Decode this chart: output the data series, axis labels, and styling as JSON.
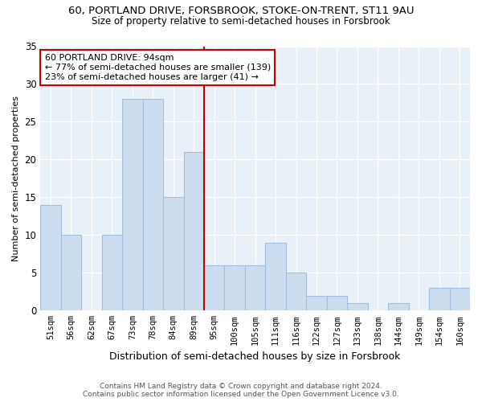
{
  "title": "60, PORTLAND DRIVE, FORSBROOK, STOKE-ON-TRENT, ST11 9AU",
  "subtitle": "Size of property relative to semi-detached houses in Forsbrook",
  "xlabel": "Distribution of semi-detached houses by size in Forsbrook",
  "ylabel": "Number of semi-detached properties",
  "categories": [
    "51sqm",
    "56sqm",
    "62sqm",
    "67sqm",
    "73sqm",
    "78sqm",
    "84sqm",
    "89sqm",
    "95sqm",
    "100sqm",
    "105sqm",
    "111sqm",
    "116sqm",
    "122sqm",
    "127sqm",
    "133sqm",
    "138sqm",
    "144sqm",
    "149sqm",
    "154sqm",
    "160sqm"
  ],
  "values": [
    14,
    10,
    0,
    10,
    28,
    28,
    15,
    21,
    6,
    6,
    6,
    9,
    5,
    2,
    2,
    1,
    0,
    1,
    0,
    3,
    3
  ],
  "bar_color": "#ccddf0",
  "bar_edge_color": "#a0bedd",
  "highlight_label": "60 PORTLAND DRIVE: 94sqm",
  "smaller_pct": "77%",
  "smaller_count": 139,
  "larger_pct": "23%",
  "larger_count": 41,
  "ylim": [
    0,
    35
  ],
  "yticks": [
    0,
    5,
    10,
    15,
    20,
    25,
    30,
    35
  ],
  "annotation_box_color": "#ffffff",
  "annotation_box_edge_color": "#cc0000",
  "vline_color": "#cc0000",
  "footer1": "Contains HM Land Registry data © Crown copyright and database right 2024.",
  "footer2": "Contains public sector information licensed under the Open Government Licence v3.0.",
  "plot_bg_color": "#e8f0f8",
  "fig_bg_color": "#ffffff",
  "grid_color": "#ffffff",
  "title_fontsize": 9.5,
  "subtitle_fontsize": 8.5,
  "ylabel_fontsize": 8,
  "xlabel_fontsize": 9
}
